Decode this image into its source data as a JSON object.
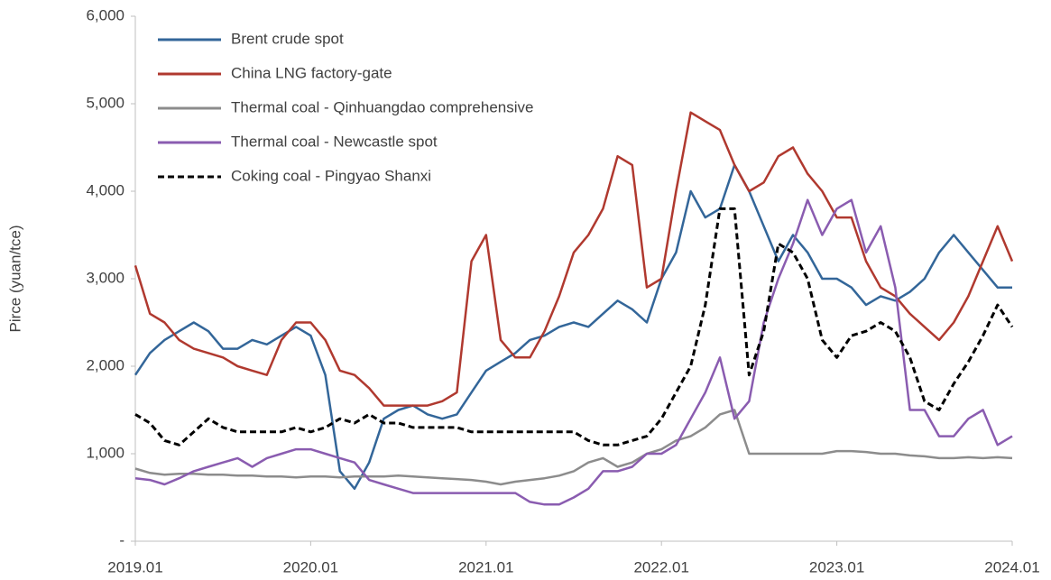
{
  "chart_data": {
    "type": "line",
    "ylabel": "Pirce (yuan/tce)",
    "categories": [
      "2019.01",
      null,
      null,
      null,
      null,
      null,
      null,
      null,
      null,
      null,
      null,
      null,
      "2020.01",
      null,
      null,
      null,
      null,
      null,
      null,
      null,
      null,
      null,
      null,
      null,
      "2021.01",
      null,
      null,
      null,
      null,
      null,
      null,
      null,
      null,
      null,
      null,
      null,
      "2022.01",
      null,
      null,
      null,
      null,
      null,
      null,
      null,
      null,
      null,
      null,
      null,
      "2023.01",
      null,
      null,
      null,
      null,
      null,
      null,
      null,
      null,
      null,
      null,
      null,
      "2024.01"
    ],
    "ylim": [
      0,
      6000
    ],
    "yticks": [
      {
        "value": 0,
        "label": "-"
      },
      {
        "value": 1000,
        "label": "1,000"
      },
      {
        "value": 2000,
        "label": "2,000"
      },
      {
        "value": 3000,
        "label": "3,000"
      },
      {
        "value": 4000,
        "label": "4,000"
      },
      {
        "value": 5000,
        "label": "5,000"
      },
      {
        "value": 6000,
        "label": "6,000"
      }
    ],
    "legend": "upper left",
    "series": [
      {
        "name": "Brent crude spot",
        "color": "#336699",
        "dashed": false,
        "values": [
          1900,
          2150,
          2300,
          2400,
          2500,
          2400,
          2200,
          2200,
          2300,
          2250,
          2350,
          2450,
          2350,
          1900,
          800,
          600,
          900,
          1400,
          1500,
          1550,
          1450,
          1400,
          1450,
          1700,
          1950,
          2050,
          2150,
          2300,
          2350,
          2450,
          2500,
          2450,
          2600,
          2750,
          2650,
          2500,
          3000,
          3300,
          4000,
          3700,
          3800,
          4300,
          4000,
          3600,
          3200,
          3500,
          3300,
          3000,
          3000,
          2900,
          2700,
          2800,
          2750,
          2850,
          3000,
          3300,
          3500,
          3300,
          3100,
          2900,
          2900
        ]
      },
      {
        "name": "China LNG factory-gate",
        "color": "#b0392f",
        "dashed": false,
        "values": [
          3150,
          2600,
          2500,
          2300,
          2200,
          2150,
          2100,
          2000,
          1950,
          1900,
          2300,
          2500,
          2500,
          2300,
          1950,
          1900,
          1750,
          1550,
          1550,
          1550,
          1550,
          1600,
          1700,
          3200,
          3500,
          2300,
          2100,
          2100,
          2400,
          2800,
          3300,
          3500,
          3800,
          4400,
          4300,
          2900,
          3000,
          4000,
          4900,
          4800,
          4700,
          4300,
          4000,
          4100,
          4400,
          4500,
          4200,
          4000,
          3700,
          3700,
          3200,
          2900,
          2800,
          2600,
          2450,
          2300,
          2500,
          2800,
          3200,
          3600,
          3200
        ]
      },
      {
        "name": "Thermal coal - Qinhuangdao comprehensive",
        "color": "#8c8c8c",
        "dashed": false,
        "values": [
          830,
          780,
          760,
          770,
          770,
          760,
          760,
          750,
          750,
          740,
          740,
          730,
          740,
          740,
          730,
          740,
          740,
          740,
          750,
          740,
          730,
          720,
          710,
          700,
          680,
          650,
          680,
          700,
          720,
          750,
          800,
          900,
          950,
          850,
          900,
          1000,
          1050,
          1150,
          1200,
          1300,
          1450,
          1500,
          1000,
          1000,
          1000,
          1000,
          1000,
          1000,
          1030,
          1030,
          1020,
          1000,
          1000,
          980,
          970,
          950,
          950,
          960,
          950,
          960,
          950
        ]
      },
      {
        "name": "Thermal coal - Newcastle spot",
        "color": "#8a5cb0",
        "dashed": false,
        "values": [
          720,
          700,
          650,
          720,
          800,
          850,
          900,
          950,
          850,
          950,
          1000,
          1050,
          1050,
          1000,
          950,
          900,
          700,
          650,
          600,
          550,
          550,
          550,
          550,
          550,
          550,
          550,
          550,
          450,
          420,
          420,
          500,
          600,
          800,
          800,
          850,
          1000,
          1000,
          1100,
          1400,
          1700,
          2100,
          1400,
          1600,
          2500,
          3000,
          3400,
          3900,
          3500,
          3800,
          3900,
          3300,
          3600,
          2900,
          1500,
          1500,
          1200,
          1200,
          1400,
          1500,
          1100,
          1200
        ]
      },
      {
        "name": "Coking coal - Pingyao Shanxi",
        "color": "#000000",
        "dashed": true,
        "values": [
          1450,
          1350,
          1150,
          1100,
          1250,
          1400,
          1300,
          1250,
          1250,
          1250,
          1250,
          1300,
          1250,
          1300,
          1400,
          1350,
          1450,
          1350,
          1350,
          1300,
          1300,
          1300,
          1300,
          1250,
          1250,
          1250,
          1250,
          1250,
          1250,
          1250,
          1250,
          1150,
          1100,
          1100,
          1150,
          1200,
          1400,
          1700,
          2000,
          2700,
          3800,
          3800,
          1900,
          2400,
          3400,
          3300,
          3000,
          2300,
          2100,
          2350,
          2400,
          2500,
          2400,
          2100,
          1600,
          1500,
          1800,
          2050,
          2350,
          2700,
          2450
        ]
      }
    ]
  }
}
